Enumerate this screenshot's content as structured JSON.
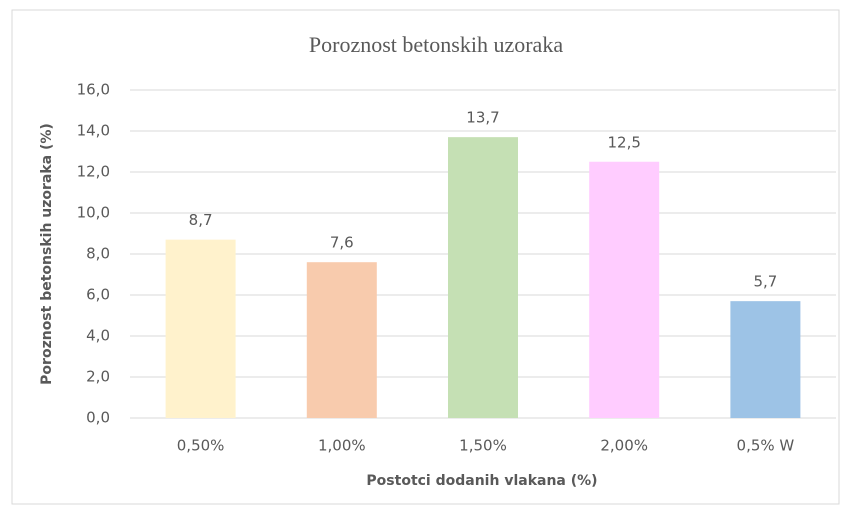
{
  "chart_data": {
    "type": "bar",
    "title": "Poroznost betonskih uzoraka",
    "x_label": "Postotci dodanih vlakana (%)",
    "y_label": "Poroznost betonskih uzoraka (%)",
    "categories": [
      "0,50%",
      "1,00%",
      "1,50%",
      "2,00%",
      "0,5% W"
    ],
    "values": [
      8.7,
      7.6,
      13.7,
      12.5,
      5.7
    ],
    "value_labels": [
      "8,7",
      "7,6",
      "13,7",
      "12,5",
      "5,7"
    ],
    "colors": [
      "#FFF2CC",
      "#F8CBAD",
      "#C5E0B4",
      "#FFCCFF",
      "#9DC3E6"
    ],
    "ylim": [
      0,
      16
    ],
    "yticks": [
      {
        "value": 0,
        "label": "0,0"
      },
      {
        "value": 2,
        "label": "2,0"
      },
      {
        "value": 4,
        "label": "4,0"
      },
      {
        "value": 6,
        "label": "6,0"
      },
      {
        "value": 8,
        "label": "8,0"
      },
      {
        "value": 10,
        "label": "10,0"
      },
      {
        "value": 12,
        "label": "12,0"
      },
      {
        "value": 14,
        "label": "14,0"
      },
      {
        "value": 16,
        "label": "16,0"
      }
    ],
    "grid": true
  }
}
